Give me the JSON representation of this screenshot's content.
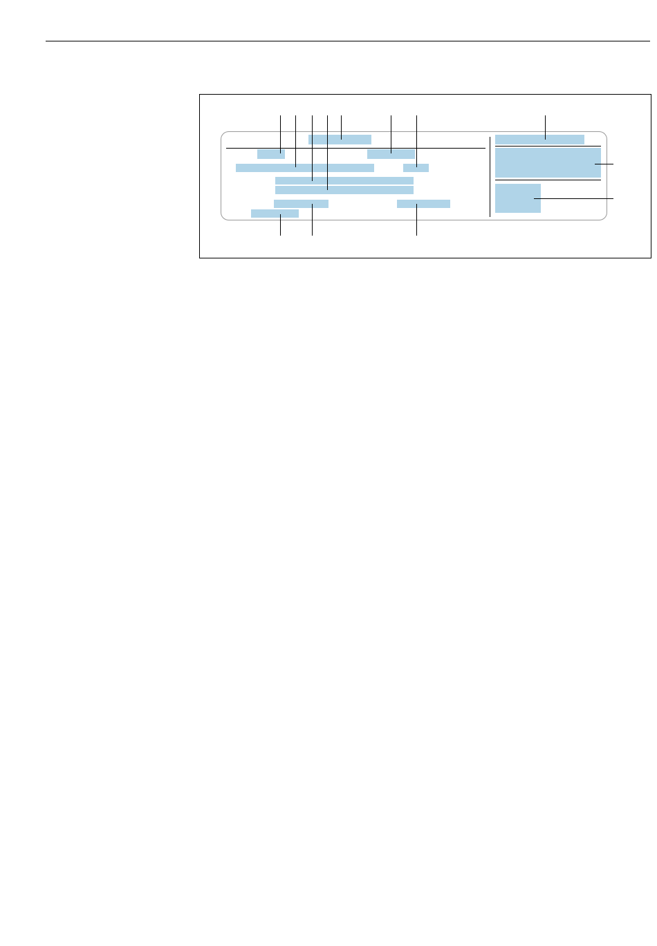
{
  "colors": {
    "field_fill": "#b0d4e8",
    "outline": "#999999",
    "line": "#000000",
    "background": "#ffffff"
  },
  "figure": {
    "type": "nameplate-diagram",
    "fields_count": 13,
    "callout_count": 14
  }
}
